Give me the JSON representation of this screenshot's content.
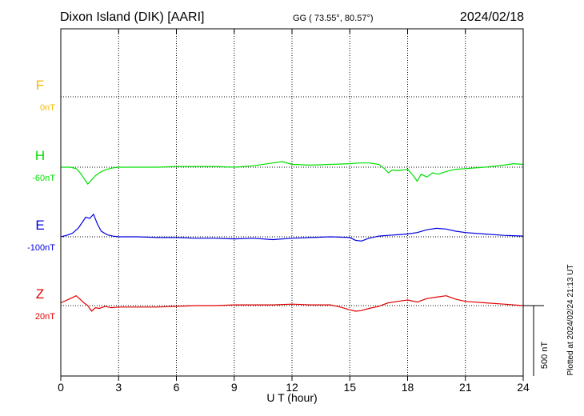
{
  "header": {
    "station": "Dixon Island (DIK)  [AARI]",
    "coords": "GG ( 73.55°,  80.57°)",
    "date": "2024/02/18"
  },
  "side_note": "Plotted at 2024/02/24 21:13 UT",
  "scale_label": "500 nT",
  "chart_data": {
    "type": "line",
    "xlabel": "U T (hour)",
    "xlim": [
      0,
      24
    ],
    "x_ticks": [
      0,
      3,
      6,
      9,
      12,
      15,
      18,
      21,
      24
    ],
    "x_tick_labels": [
      "0",
      "3",
      "6",
      "9",
      "12",
      "15",
      "18",
      "21",
      "24"
    ],
    "scale_bar_nT": 500,
    "grid": true,
    "series": [
      {
        "name": "F",
        "baseline": "0nT",
        "color": "#f5b800",
        "x": [],
        "y": []
      },
      {
        "name": "H",
        "baseline": "-60nT",
        "color": "#00e000",
        "x": [
          0,
          0.5,
          0.8,
          1.0,
          1.2,
          1.4,
          1.6,
          1.8,
          2.0,
          2.2,
          2.4,
          2.7,
          3.0,
          4.0,
          5.0,
          6.0,
          7.0,
          8.0,
          9.0,
          10.0,
          11.0,
          11.5,
          12.0,
          13.0,
          14.0,
          15.0,
          15.5,
          16.0,
          16.5,
          16.8,
          17.0,
          17.2,
          17.5,
          18.0,
          18.3,
          18.5,
          18.7,
          19.0,
          19.3,
          19.6,
          20.0,
          20.5,
          21.0,
          22.0,
          23.0,
          23.5,
          24.0
        ],
        "y": [
          0,
          0,
          -10,
          -40,
          -80,
          -120,
          -90,
          -60,
          -40,
          -25,
          -15,
          -5,
          0,
          0,
          0,
          5,
          5,
          5,
          0,
          10,
          30,
          40,
          20,
          15,
          20,
          25,
          30,
          30,
          20,
          -10,
          -40,
          -20,
          -25,
          -15,
          -60,
          -100,
          -50,
          -70,
          -40,
          -50,
          -30,
          -15,
          -10,
          0,
          15,
          25,
          20
        ]
      },
      {
        "name": "E",
        "baseline": "-100nT",
        "color": "#0000e0",
        "x": [
          0,
          0.3,
          0.6,
          0.9,
          1.1,
          1.3,
          1.5,
          1.7,
          1.9,
          2.1,
          2.4,
          2.7,
          3.0,
          4.0,
          5.0,
          6.0,
          7.0,
          8.0,
          9.0,
          10.0,
          11.0,
          12.0,
          13.0,
          14.0,
          15.0,
          15.3,
          15.6,
          16.0,
          16.5,
          17.0,
          17.5,
          18.0,
          18.5,
          19.0,
          19.5,
          20.0,
          20.5,
          21.0,
          22.0,
          23.0,
          24.0
        ],
        "y": [
          0,
          10,
          25,
          60,
          100,
          140,
          130,
          160,
          90,
          40,
          15,
          5,
          0,
          0,
          -5,
          -5,
          -10,
          -10,
          -15,
          -10,
          -20,
          -10,
          -5,
          0,
          -5,
          -25,
          -30,
          -10,
          5,
          10,
          15,
          20,
          30,
          50,
          60,
          55,
          40,
          30,
          20,
          10,
          5
        ]
      },
      {
        "name": "Z",
        "baseline": "20nT",
        "color": "#e00000",
        "x": [
          0,
          0.5,
          0.8,
          1.0,
          1.2,
          1.4,
          1.6,
          1.8,
          2.0,
          2.3,
          2.6,
          3.0,
          4.0,
          5.0,
          6.0,
          7.0,
          8.0,
          9.0,
          10.0,
          11.0,
          12.0,
          13.0,
          14.0,
          14.5,
          15.0,
          15.3,
          15.6,
          16.0,
          16.5,
          17.0,
          17.5,
          18.0,
          18.5,
          19.0,
          19.5,
          20.0,
          20.5,
          21.0,
          22.0,
          23.0,
          24.0
        ],
        "y": [
          20,
          50,
          70,
          45,
          20,
          0,
          -40,
          -15,
          -20,
          -5,
          -15,
          -10,
          -10,
          -10,
          -5,
          0,
          0,
          5,
          5,
          5,
          10,
          5,
          5,
          -10,
          -30,
          -40,
          -35,
          -20,
          -5,
          20,
          30,
          40,
          25,
          50,
          60,
          70,
          45,
          30,
          20,
          10,
          0
        ]
      }
    ]
  }
}
